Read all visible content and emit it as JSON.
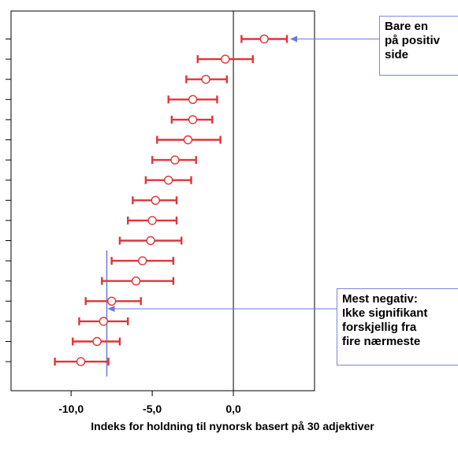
{
  "chart_data": {
    "type": "errorbar",
    "orientation": "horizontal",
    "xlabel": "Indeks for holdning til nynorsk basert på 30 adjektiver",
    "x_ticks": [
      {
        "value": -10,
        "label": "-10,0"
      },
      {
        "value": -5,
        "label": "-5,0"
      },
      {
        "value": 0,
        "label": "0,0"
      }
    ],
    "xlim": [
      -13.7,
      5.0
    ],
    "reference_line_x": 0,
    "marker_line_x": -7.8,
    "grid": false,
    "points": [
      {
        "mean": 1.9,
        "low": 0.5,
        "high": 3.3
      },
      {
        "mean": -0.5,
        "low": -2.2,
        "high": 1.2
      },
      {
        "mean": -1.7,
        "low": -2.9,
        "high": -0.4
      },
      {
        "mean": -2.5,
        "low": -4.0,
        "high": -1.0
      },
      {
        "mean": -2.5,
        "low": -3.8,
        "high": -1.3
      },
      {
        "mean": -2.8,
        "low": -4.7,
        "high": -0.8
      },
      {
        "mean": -3.6,
        "low": -5.0,
        "high": -2.3
      },
      {
        "mean": -4.0,
        "low": -5.4,
        "high": -2.6
      },
      {
        "mean": -4.8,
        "low": -6.2,
        "high": -3.5
      },
      {
        "mean": -5.0,
        "low": -6.5,
        "high": -3.5
      },
      {
        "mean": -5.1,
        "low": -7.0,
        "high": -3.2
      },
      {
        "mean": -5.6,
        "low": -7.5,
        "high": -3.7
      },
      {
        "mean": -6.0,
        "low": -8.1,
        "high": -3.7
      },
      {
        "mean": -7.5,
        "low": -9.1,
        "high": -5.7
      },
      {
        "mean": -8.0,
        "low": -9.5,
        "high": -6.5
      },
      {
        "mean": -8.4,
        "low": -9.9,
        "high": -7.0
      },
      {
        "mean": -9.4,
        "low": -11.0,
        "high": -7.7
      }
    ],
    "colors": {
      "errorbar": "#e03438",
      "zero_line": "#000000",
      "marker_line": "#6f78d8",
      "arrow": "#6f78d8",
      "axis": "#000000"
    },
    "annotations": [
      {
        "id": "top",
        "lines": [
          "Bare en",
          "på positiv",
          "side"
        ],
        "points_to": 0
      },
      {
        "id": "bottom",
        "lines": [
          "Mest negativ:",
          "Ikke signifikant",
          "forskjellig fra",
          "fire nærmeste"
        ],
        "points_to": 14
      }
    ]
  }
}
